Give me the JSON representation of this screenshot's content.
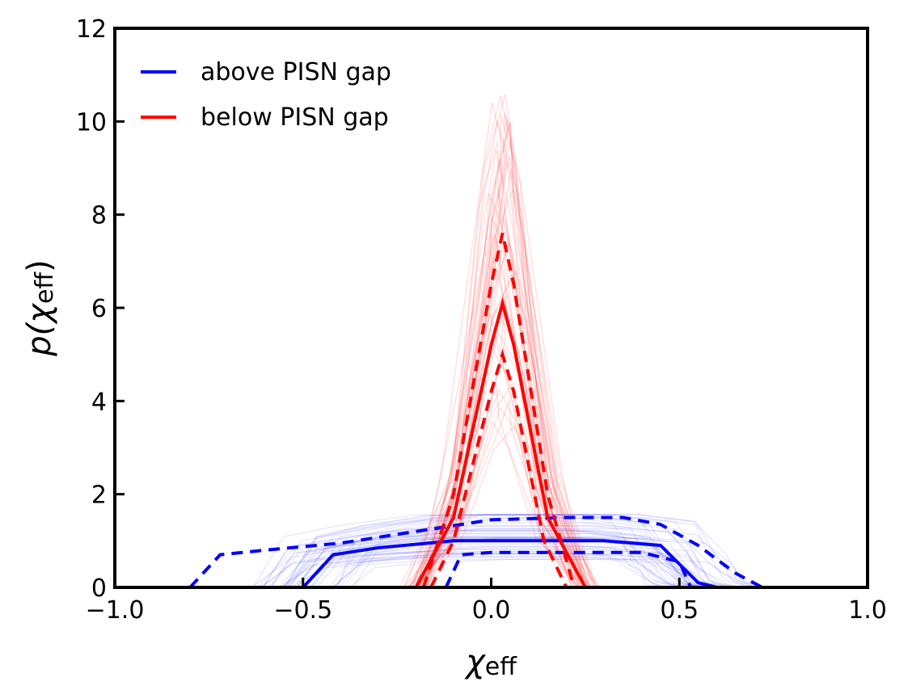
{
  "chart_data": {
    "type": "line",
    "xlabel": {
      "symbol": "χ",
      "sub": "eff"
    },
    "ylabel": {
      "prefix": "p(",
      "symbol": "χ",
      "sub": "eff",
      "suffix": ")"
    },
    "xlim": [
      -1.0,
      1.0
    ],
    "ylim": [
      0,
      12
    ],
    "xticks": [
      -1.0,
      -0.5,
      0.0,
      0.5,
      1.0
    ],
    "xtick_labels": [
      "−1.0",
      "−0.5",
      "0.0",
      "0.5",
      "1.0"
    ],
    "yticks": [
      0,
      2,
      4,
      6,
      8,
      10,
      12
    ],
    "ytick_labels": [
      "0",
      "2",
      "4",
      "6",
      "8",
      "10",
      "12"
    ],
    "grid": false,
    "legend_position": "top-left",
    "series": [
      {
        "name": "above PISN gap",
        "color": "#0000ff",
        "median": {
          "x": [
            -0.5,
            -0.42,
            -0.3,
            -0.1,
            0.1,
            0.3,
            0.45,
            0.5,
            0.55,
            0.6
          ],
          "y": [
            0.0,
            0.7,
            0.85,
            1.0,
            1.0,
            1.0,
            0.9,
            0.5,
            0.1,
            0.0
          ]
        },
        "upper_90": {
          "x": [
            -0.8,
            -0.72,
            -0.6,
            -0.4,
            -0.2,
            0.0,
            0.2,
            0.35,
            0.45,
            0.55,
            0.65,
            0.72
          ],
          "y": [
            0.0,
            0.7,
            0.8,
            0.95,
            1.2,
            1.45,
            1.5,
            1.5,
            1.35,
            0.9,
            0.3,
            0.0
          ]
        },
        "lower_90": {
          "x": [
            -0.12,
            -0.08,
            0.0,
            0.2,
            0.4,
            0.5,
            0.53
          ],
          "y": [
            0.0,
            0.7,
            0.75,
            0.75,
            0.75,
            0.55,
            0.0
          ]
        }
      },
      {
        "name": "below PISN gap",
        "color": "#ff0000",
        "median": {
          "x": [
            -0.2,
            -0.1,
            0.0,
            0.03,
            0.06,
            0.15,
            0.25
          ],
          "y": [
            0.0,
            1.5,
            5.2,
            6.1,
            5.2,
            1.5,
            0.0
          ]
        },
        "upper_90": {
          "x": [
            -0.18,
            -0.1,
            0.0,
            0.03,
            0.06,
            0.15,
            0.22
          ],
          "y": [
            0.0,
            2.0,
            6.5,
            7.6,
            6.5,
            2.0,
            0.0
          ]
        },
        "lower_90": {
          "x": [
            -0.16,
            -0.1,
            0.0,
            0.03,
            0.06,
            0.14,
            0.2
          ],
          "y": [
            0.0,
            1.0,
            4.2,
            5.0,
            4.2,
            1.0,
            0.0
          ]
        }
      }
    ]
  }
}
